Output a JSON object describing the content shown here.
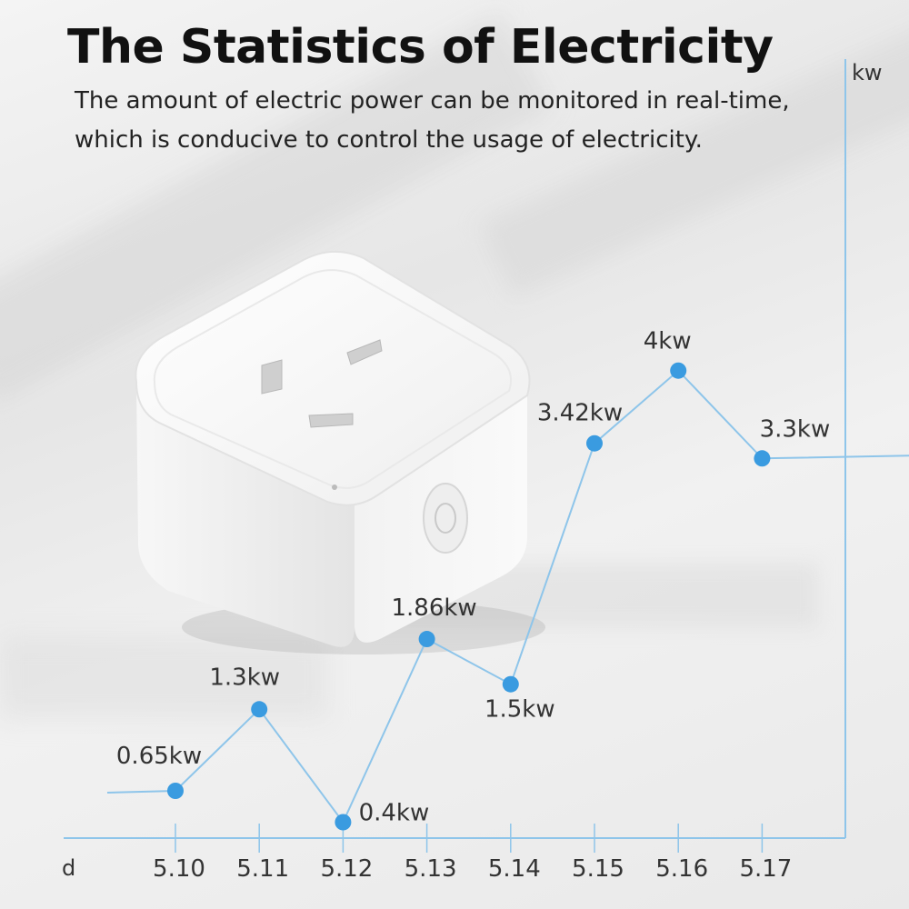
{
  "header": {
    "title": "The Statistics of Electricity",
    "subtitle_lines": [
      "The amount of electric power can be monitored in real-time,",
      "which is conducive to control the usage of electricity."
    ]
  },
  "colors": {
    "accent": "#3a9be0",
    "line": "#8ec5ea",
    "text": "#222222"
  },
  "product": {
    "name": "smart-plug-image"
  },
  "chart_data": {
    "type": "line",
    "xlabel": "d",
    "ylabel": "kw",
    "categories": [
      "5.10",
      "5.11",
      "5.12",
      "5.13",
      "5.14",
      "5.15",
      "5.16",
      "5.17"
    ],
    "series": [
      {
        "values": [
          0.65,
          1.3,
          0.4,
          1.86,
          1.5,
          3.42,
          4,
          3.3
        ],
        "labels": [
          "0.65kw",
          "1.3kw",
          "0.4kw",
          "1.86kw",
          "1.5kw",
          "3.42kw",
          "4kw",
          "3.3kw"
        ]
      }
    ],
    "ylim": [
      -0.3,
      4.6
    ],
    "grid": false,
    "legend": "none"
  }
}
